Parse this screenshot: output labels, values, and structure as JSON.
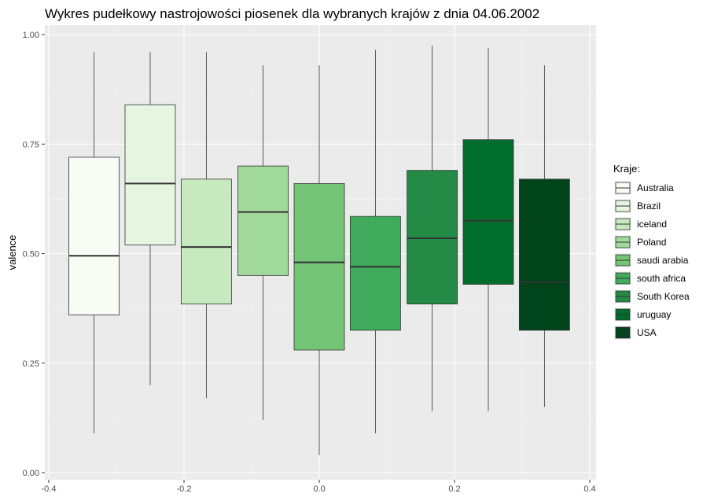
{
  "chart_data": {
    "type": "boxplot",
    "title": "Wykres pudełkowy nastrojowości piosenek dla wybranych krajów z dnia 04.06.2002",
    "xlabel": "",
    "ylabel": "valence",
    "xlim": [
      -0.41,
      0.41
    ],
    "ylim": [
      0,
      1
    ],
    "xticks": [
      -0.4,
      -0.2,
      0.0,
      0.2,
      0.4
    ],
    "xtick_labels": [
      "-0.4",
      "-0.2",
      "0.0",
      "0.2",
      "0.4"
    ],
    "yticks": [
      0.0,
      0.25,
      0.5,
      0.75,
      1.0
    ],
    "ytick_labels": [
      "0.00",
      "0.25",
      "0.50",
      "0.75",
      "1.00"
    ],
    "grid": true,
    "legend": {
      "title": "Kraje:",
      "position": "right"
    },
    "boxes": [
      {
        "name": "Australia",
        "x": -0.333,
        "min": 0.09,
        "q1": 0.36,
        "median": 0.495,
        "q3": 0.72,
        "max": 0.96,
        "color": "#f7fcf5"
      },
      {
        "name": "Brazil",
        "x": -0.25,
        "min": 0.2,
        "q1": 0.52,
        "median": 0.66,
        "q3": 0.84,
        "max": 0.96,
        "color": "#e5f5e0"
      },
      {
        "name": "iceland",
        "x": -0.167,
        "min": 0.17,
        "q1": 0.385,
        "median": 0.515,
        "q3": 0.67,
        "max": 0.96,
        "color": "#c7e9c0"
      },
      {
        "name": "Poland",
        "x": -0.083,
        "min": 0.12,
        "q1": 0.45,
        "median": 0.595,
        "q3": 0.7,
        "max": 0.93,
        "color": "#a1d99b"
      },
      {
        "name": "saudi arabia",
        "x": 0.0,
        "min": 0.04,
        "q1": 0.28,
        "median": 0.48,
        "q3": 0.66,
        "max": 0.93,
        "color": "#74c476"
      },
      {
        "name": "south africa",
        "x": 0.083,
        "min": 0.09,
        "q1": 0.325,
        "median": 0.47,
        "q3": 0.585,
        "max": 0.965,
        "color": "#41ab5d"
      },
      {
        "name": "South Korea",
        "x": 0.167,
        "min": 0.14,
        "q1": 0.385,
        "median": 0.535,
        "q3": 0.69,
        "max": 0.975,
        "color": "#238b45"
      },
      {
        "name": "uruguay",
        "x": 0.25,
        "min": 0.14,
        "q1": 0.43,
        "median": 0.575,
        "q3": 0.76,
        "max": 0.97,
        "color": "#006d2c"
      },
      {
        "name": "USA",
        "x": 0.333,
        "min": 0.15,
        "q1": 0.325,
        "median": 0.435,
        "q3": 0.67,
        "max": 0.93,
        "color": "#00441b"
      }
    ]
  }
}
